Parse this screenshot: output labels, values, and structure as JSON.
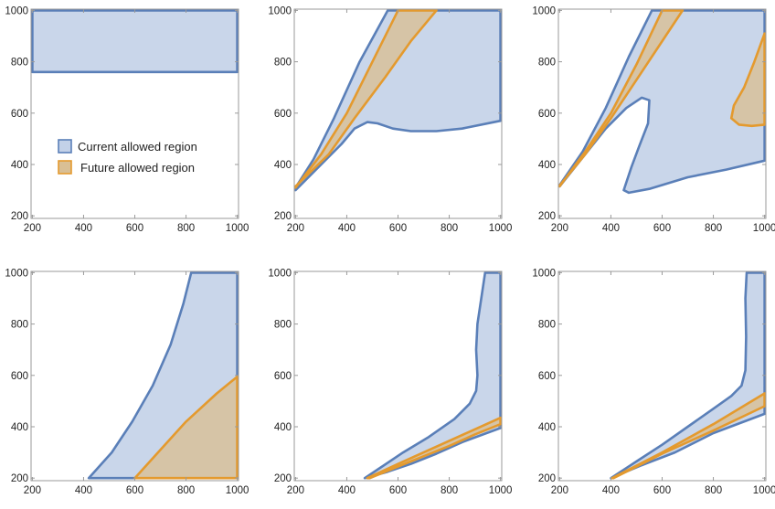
{
  "colors": {
    "current_fill": "#c3d1e8",
    "current_stroke": "#5a7fb8",
    "future_fill": "#d9bf95",
    "future_stroke": "#e49a2e"
  },
  "legend": {
    "items": [
      {
        "label": "Current allowed region",
        "series": "current"
      },
      {
        "label": "Future allowed region",
        "series": "future"
      }
    ]
  },
  "chart_data": [
    {
      "type": "region",
      "xlim": [
        195,
        1005
      ],
      "ylim": [
        190,
        1005
      ],
      "xticks": [
        200,
        400,
        600,
        800,
        1000
      ],
      "yticks": [
        200,
        400,
        600,
        800,
        1000
      ],
      "legend": true,
      "series": [
        {
          "name": "Current allowed region",
          "role": "current",
          "points": [
            [
              200,
              760
            ],
            [
              1000,
              760
            ],
            [
              1000,
              1000
            ],
            [
              200,
              1000
            ]
          ]
        }
      ]
    },
    {
      "type": "region",
      "xlim": [
        195,
        1005
      ],
      "ylim": [
        190,
        1005
      ],
      "xticks": [
        200,
        400,
        600,
        800,
        1000
      ],
      "yticks": [
        200,
        400,
        600,
        800,
        1000
      ],
      "series": [
        {
          "name": "Current allowed region",
          "role": "current",
          "points": [
            [
              200,
              300
            ],
            [
              300,
              400
            ],
            [
              380,
              480
            ],
            [
              430,
              540
            ],
            [
              480,
              565
            ],
            [
              520,
              560
            ],
            [
              580,
              540
            ],
            [
              650,
              530
            ],
            [
              750,
              530
            ],
            [
              850,
              540
            ],
            [
              1000,
              570
            ],
            [
              1000,
              1000
            ],
            [
              560,
              1000
            ],
            [
              450,
              800
            ],
            [
              350,
              580
            ],
            [
              270,
              420
            ],
            [
              200,
              310
            ]
          ]
        },
        {
          "name": "Future allowed region",
          "role": "future",
          "points": [
            [
              200,
              310
            ],
            [
              300,
              440
            ],
            [
              400,
              600
            ],
            [
              500,
              800
            ],
            [
              600,
              1000
            ],
            [
              750,
              1000
            ],
            [
              650,
              880
            ],
            [
              550,
              740
            ],
            [
              430,
              580
            ],
            [
              330,
              440
            ],
            [
              200,
              315
            ]
          ]
        }
      ]
    },
    {
      "type": "region",
      "xlim": [
        195,
        1005
      ],
      "ylim": [
        190,
        1005
      ],
      "xticks": [
        200,
        400,
        600,
        800,
        1000
      ],
      "yticks": [
        200,
        400,
        600,
        800,
        1000
      ],
      "series": [
        {
          "name": "Current allowed region",
          "role": "current",
          "points": [
            [
              200,
              315
            ],
            [
              300,
              440
            ],
            [
              380,
              540
            ],
            [
              460,
              620
            ],
            [
              520,
              660
            ],
            [
              550,
              650
            ],
            [
              545,
              560
            ],
            [
              510,
              470
            ],
            [
              480,
              390
            ],
            [
              450,
              300
            ],
            [
              470,
              290
            ],
            [
              550,
              305
            ],
            [
              700,
              350
            ],
            [
              850,
              380
            ],
            [
              1000,
              415
            ],
            [
              1000,
              1000
            ],
            [
              560,
              1000
            ],
            [
              470,
              820
            ],
            [
              380,
              620
            ],
            [
              290,
              450
            ],
            [
              200,
              320
            ]
          ]
        },
        {
          "name": "Future allowed region",
          "role": "future",
          "points": [
            [
              200,
              315
            ],
            [
              300,
              450
            ],
            [
              400,
              600
            ],
            [
              500,
              790
            ],
            [
              600,
              1000
            ],
            [
              680,
              1000
            ],
            [
              600,
              880
            ],
            [
              500,
              730
            ],
            [
              400,
              580
            ],
            [
              300,
              440
            ],
            [
              200,
              318
            ]
          ]
        },
        {
          "name": "Future allowed region",
          "role": "future",
          "points": [
            [
              1000,
              910
            ],
            [
              960,
              800
            ],
            [
              920,
              700
            ],
            [
              880,
              630
            ],
            [
              870,
              580
            ],
            [
              900,
              555
            ],
            [
              950,
              550
            ],
            [
              1000,
              555
            ]
          ]
        }
      ]
    },
    {
      "type": "region",
      "xlim": [
        195,
        1005
      ],
      "ylim": [
        190,
        1005
      ],
      "xticks": [
        200,
        400,
        600,
        800,
        1000
      ],
      "yticks": [
        200,
        400,
        600,
        800,
        1000
      ],
      "series": [
        {
          "name": "Current allowed region",
          "role": "current",
          "points": [
            [
              420,
              200
            ],
            [
              1000,
              200
            ],
            [
              1000,
              1000
            ],
            [
              820,
              1000
            ],
            [
              790,
              880
            ],
            [
              740,
              720
            ],
            [
              670,
              560
            ],
            [
              590,
              420
            ],
            [
              510,
              300
            ],
            [
              420,
              200
            ]
          ]
        },
        {
          "name": "Future allowed region",
          "role": "future",
          "points": [
            [
              600,
              200
            ],
            [
              1000,
              200
            ],
            [
              1000,
              595
            ],
            [
              920,
              530
            ],
            [
              800,
              420
            ],
            [
              700,
              310
            ],
            [
              600,
              200
            ]
          ]
        }
      ]
    },
    {
      "type": "region",
      "xlim": [
        195,
        1005
      ],
      "ylim": [
        190,
        1005
      ],
      "xticks": [
        200,
        400,
        600,
        800,
        1000
      ],
      "yticks": [
        200,
        400,
        600,
        800,
        1000
      ],
      "series": [
        {
          "name": "Current allowed region",
          "role": "current",
          "points": [
            [
              470,
              200
            ],
            [
              560,
              225
            ],
            [
              650,
              255
            ],
            [
              750,
              295
            ],
            [
              850,
              340
            ],
            [
              1000,
              395
            ],
            [
              1000,
              1000
            ],
            [
              940,
              1000
            ],
            [
              925,
              900
            ],
            [
              910,
              800
            ],
            [
              905,
              700
            ],
            [
              910,
              600
            ],
            [
              905,
              540
            ],
            [
              880,
              490
            ],
            [
              820,
              430
            ],
            [
              720,
              360
            ],
            [
              620,
              300
            ],
            [
              530,
              240
            ],
            [
              470,
              200
            ]
          ]
        },
        {
          "name": "Future allowed region",
          "role": "future",
          "points": [
            [
              480,
              200
            ],
            [
              600,
              255
            ],
            [
              700,
              300
            ],
            [
              800,
              345
            ],
            [
              900,
              390
            ],
            [
              1000,
              435
            ],
            [
              1000,
              410
            ],
            [
              900,
              370
            ],
            [
              800,
              325
            ],
            [
              700,
              285
            ],
            [
              600,
              245
            ],
            [
              490,
              200
            ]
          ]
        }
      ]
    },
    {
      "type": "region",
      "xlim": [
        195,
        1005
      ],
      "ylim": [
        190,
        1005
      ],
      "xticks": [
        200,
        400,
        600,
        800,
        1000
      ],
      "yticks": [
        200,
        400,
        600,
        800,
        1000
      ],
      "series": [
        {
          "name": "Current allowed region",
          "role": "current",
          "points": [
            [
              400,
              200
            ],
            [
              520,
              250
            ],
            [
              650,
              300
            ],
            [
              800,
              375
            ],
            [
              1000,
              450
            ],
            [
              1000,
              1000
            ],
            [
              930,
              1000
            ],
            [
              925,
              900
            ],
            [
              928,
              750
            ],
            [
              925,
              620
            ],
            [
              910,
              560
            ],
            [
              870,
              520
            ],
            [
              800,
              470
            ],
            [
              700,
              400
            ],
            [
              600,
              330
            ],
            [
              500,
              265
            ],
            [
              400,
              200
            ]
          ]
        },
        {
          "name": "Future allowed region",
          "role": "future",
          "points": [
            [
              405,
              200
            ],
            [
              600,
              300
            ],
            [
              800,
              410
            ],
            [
              1000,
              530
            ],
            [
              1000,
              480
            ],
            [
              800,
              385
            ],
            [
              600,
              295
            ],
            [
              410,
              200
            ]
          ]
        }
      ]
    }
  ]
}
